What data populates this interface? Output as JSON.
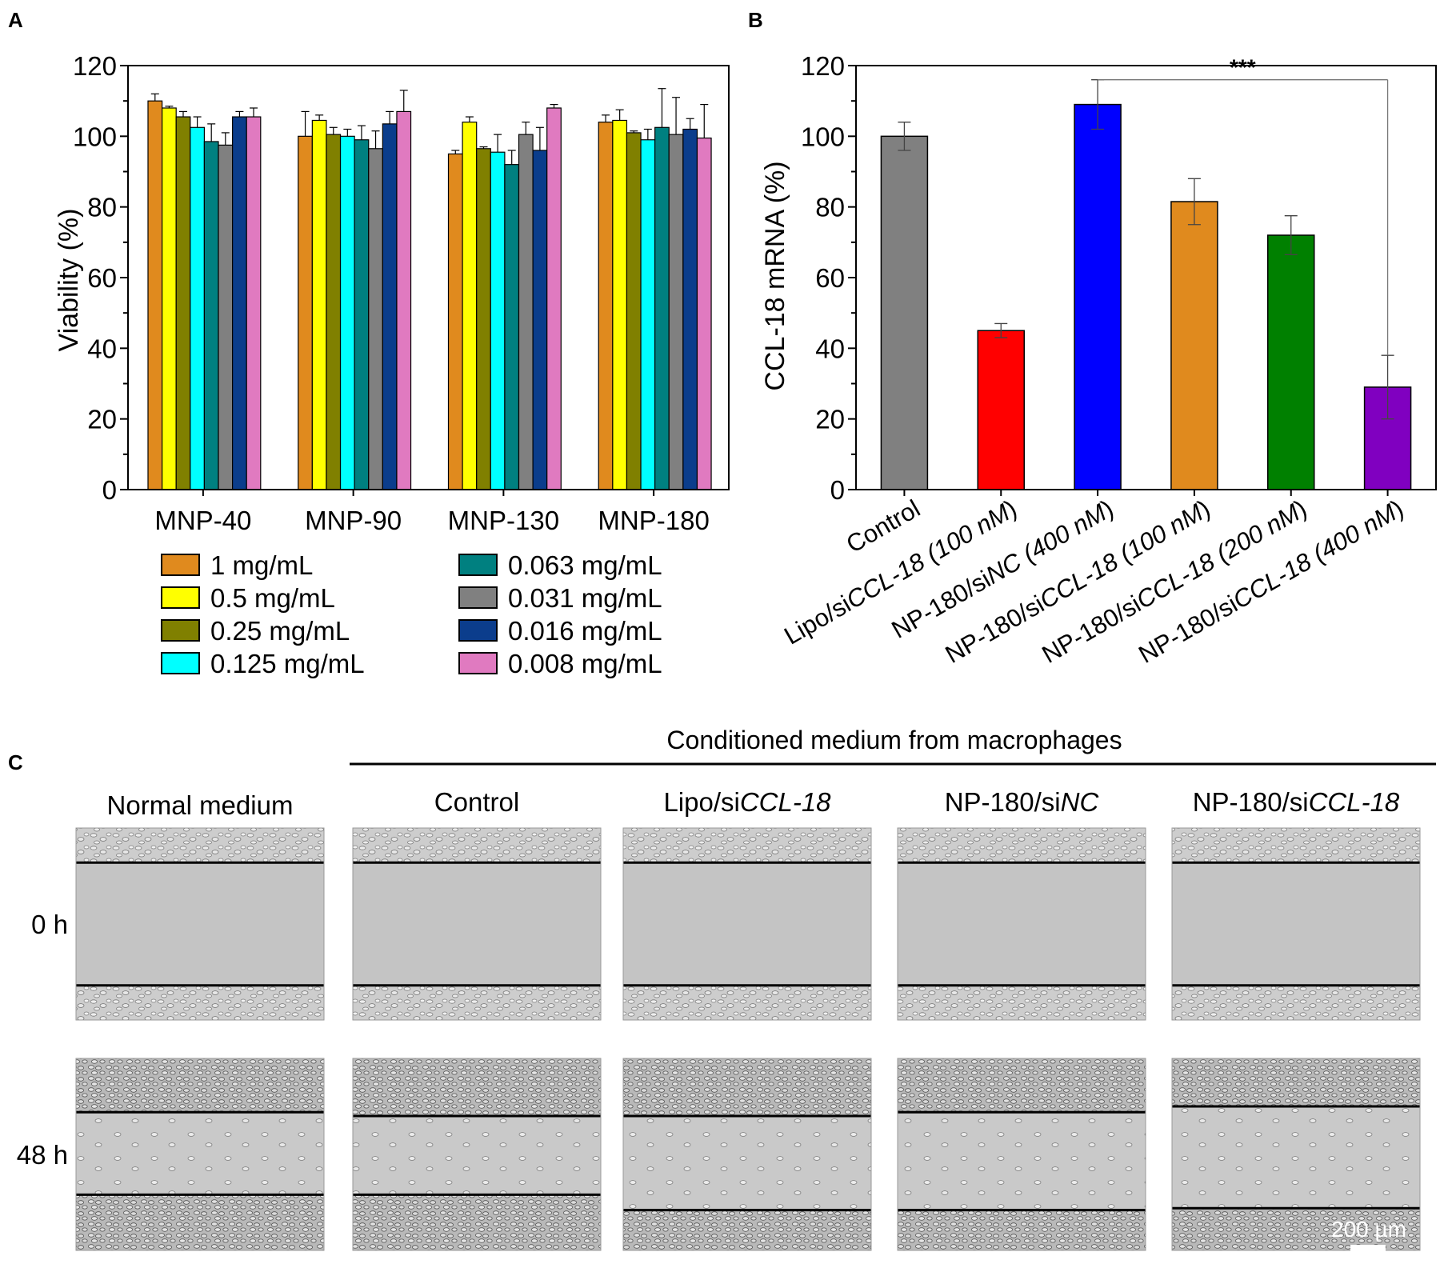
{
  "panels": {
    "a": {
      "letter": "A"
    },
    "b": {
      "letter": "B"
    },
    "c": {
      "letter": "C"
    }
  },
  "chart_data": [
    {
      "id": "A",
      "type": "bar",
      "title": "",
      "xlabel": "",
      "ylabel": "Viability (%)",
      "ylim": [
        0,
        120
      ],
      "yticks": [
        0,
        20,
        40,
        60,
        80,
        100,
        120
      ],
      "ytick_labels": [
        "0",
        "20",
        "40",
        "60",
        "80",
        "100",
        "120"
      ],
      "categories": [
        "MNP-40",
        "MNP-90",
        "MNP-130",
        "MNP-180"
      ],
      "series": [
        {
          "name": "1 mg/mL",
          "color": "#e08a1e",
          "values": [
            110,
            100,
            95,
            104
          ],
          "errors": [
            2,
            7,
            1,
            2
          ]
        },
        {
          "name": "0.5 mg/mL",
          "color": "#ffff00",
          "values": [
            108,
            104.5,
            104,
            104.5
          ],
          "errors": [
            0.5,
            1.5,
            1.5,
            3
          ]
        },
        {
          "name": "0.25 mg/mL",
          "color": "#808000",
          "values": [
            105.5,
            100.5,
            96.5,
            101
          ],
          "errors": [
            1.5,
            2,
            0.5,
            0.5
          ]
        },
        {
          "name": "0.125 mg/mL",
          "color": "#00ffff",
          "values": [
            102.5,
            100,
            95.5,
            99
          ],
          "errors": [
            3,
            2,
            5,
            3
          ]
        },
        {
          "name": "0.063 mg/mL",
          "color": "#008080",
          "values": [
            98.5,
            99,
            92,
            102.5
          ],
          "errors": [
            5,
            4,
            4,
            11
          ]
        },
        {
          "name": "0.031 mg/mL",
          "color": "#808080",
          "values": [
            97.5,
            96.5,
            100.5,
            100.5
          ],
          "errors": [
            3.5,
            5,
            3.5,
            10.5
          ]
        },
        {
          "name": "0.016 mg/mL",
          "color": "#0b3d8c",
          "values": [
            105.5,
            103.5,
            96,
            102
          ],
          "errors": [
            1.5,
            3.5,
            6.5,
            3
          ]
        },
        {
          "name": "0.008 mg/mL",
          "color": "#e07ac0",
          "values": [
            105.5,
            107,
            108,
            99.5
          ],
          "errors": [
            2.5,
            6,
            1,
            9.5
          ]
        }
      ],
      "legend_position": "bottom, two columns"
    },
    {
      "id": "B",
      "type": "bar",
      "title": "",
      "xlabel": "",
      "ylabel": "CCL-18 mRNA (%)",
      "ylim": [
        0,
        120
      ],
      "yticks": [
        0,
        20,
        40,
        60,
        80,
        100,
        120
      ],
      "ytick_labels": [
        "0",
        "20",
        "40",
        "60",
        "80",
        "100",
        "120"
      ],
      "categories": [
        "Control",
        "Lipo/siCCL-18 (100 nM)",
        "NP-180/siNC (400 nM)",
        "NP-180/siCCL-18 (100 nM)",
        "NP-180/siCCL-18 (200 nM)",
        "NP-180/siCCL-18 (400 nM)"
      ],
      "label_parts": [
        {
          "a": "Control",
          "b": "",
          "c": ""
        },
        {
          "a": "Lipo/si",
          "b": "CCL-18 (100 nM",
          "c": ")"
        },
        {
          "a": "NP-180/si",
          "b": "NC (400 nM",
          "c": ")"
        },
        {
          "a": "NP-180/si",
          "b": "CCL-18 (100 nM",
          "c": ")"
        },
        {
          "a": "NP-180/si",
          "b": "CCL-18 (200 nM",
          "c": ")"
        },
        {
          "a": "NP-180/si",
          "b": "CCL-18 (400 nM",
          "c": ")"
        }
      ],
      "values": [
        100,
        45,
        109,
        81.5,
        72,
        29
      ],
      "errors": [
        4,
        2,
        7,
        6.5,
        5.5,
        9
      ],
      "colors": [
        "#808080",
        "#ff0000",
        "#0000ff",
        "#e08a1e",
        "#008000",
        "#8000c0"
      ],
      "significance": {
        "label": "***",
        "from_index": 2,
        "to_index": 5,
        "y": 116
      }
    }
  ],
  "micrographs": {
    "header": "Conditioned medium from macrophages",
    "columns": [
      {
        "a": "Normal medium",
        "b": "",
        "c": ""
      },
      {
        "a": "Control",
        "b": "",
        "c": ""
      },
      {
        "a": "Lipo/si",
        "b": "CCL-18",
        "c": ""
      },
      {
        "a": "NP-180/si",
        "b": "NC",
        "c": ""
      },
      {
        "a": "NP-180/si",
        "b": "CCL-18",
        "c": ""
      }
    ],
    "rows": [
      "0 h",
      "48 h"
    ],
    "wound_edges": [
      [
        [
          0.18,
          0.82
        ],
        [
          0.18,
          0.82
        ],
        [
          0.18,
          0.82
        ],
        [
          0.18,
          0.82
        ],
        [
          0.18,
          0.82
        ]
      ],
      [
        [
          0.28,
          0.71
        ],
        [
          0.3,
          0.71
        ],
        [
          0.3,
          0.79
        ],
        [
          0.28,
          0.79
        ],
        [
          0.25,
          0.78
        ]
      ]
    ],
    "scale_bar": "200 µm"
  }
}
